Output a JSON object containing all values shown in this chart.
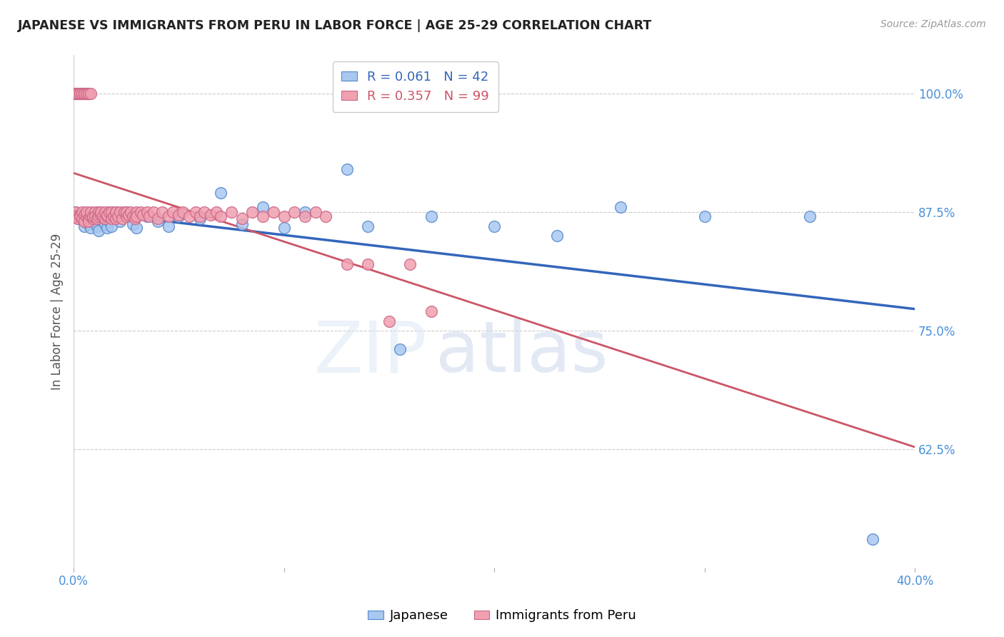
{
  "title": "JAPANESE VS IMMIGRANTS FROM PERU IN LABOR FORCE | AGE 25-29 CORRELATION CHART",
  "source": "Source: ZipAtlas.com",
  "ylabel": "In Labor Force | Age 25-29",
  "yticks": [
    0.625,
    0.75,
    0.875,
    1.0
  ],
  "ytick_labels": [
    "62.5%",
    "75.0%",
    "87.5%",
    "100.0%"
  ],
  "xlim": [
    0.0,
    0.4
  ],
  "ylim": [
    0.5,
    1.04
  ],
  "blue_fill": "#a8c8f0",
  "blue_edge": "#5588cc",
  "pink_fill": "#f0a0b0",
  "pink_edge": "#cc6688",
  "blue_line_color": "#3366bb",
  "pink_line_color": "#cc5566",
  "R_blue": 0.061,
  "N_blue": 42,
  "R_pink": 0.357,
  "N_pink": 99,
  "legend_label_blue": "Japanese",
  "legend_label_pink": "Immigrants from Peru",
  "axis_color": "#4a90d9",
  "blue_x": [
    0.001,
    0.002,
    0.003,
    0.004,
    0.005,
    0.006,
    0.007,
    0.008,
    0.009,
    0.01,
    0.011,
    0.012,
    0.013,
    0.015,
    0.016,
    0.017,
    0.018,
    0.02,
    0.022,
    0.025,
    0.028,
    0.03,
    0.035,
    0.04,
    0.045,
    0.05,
    0.06,
    0.07,
    0.08,
    0.09,
    0.1,
    0.11,
    0.13,
    0.14,
    0.155,
    0.17,
    0.2,
    0.23,
    0.26,
    0.3,
    0.35,
    0.38
  ],
  "blue_y": [
    0.875,
    0.868,
    0.872,
    0.87,
    0.86,
    0.865,
    0.862,
    0.858,
    0.87,
    0.865,
    0.86,
    0.855,
    0.868,
    0.862,
    0.858,
    0.865,
    0.86,
    0.87,
    0.865,
    0.875,
    0.862,
    0.858,
    0.87,
    0.865,
    0.86,
    0.87,
    0.868,
    0.895,
    0.862,
    0.88,
    0.858,
    0.875,
    0.92,
    0.86,
    0.73,
    0.87,
    0.86,
    0.85,
    0.88,
    0.87,
    0.87,
    0.53
  ],
  "pink_x": [
    0.001,
    0.001,
    0.002,
    0.003,
    0.003,
    0.004,
    0.004,
    0.005,
    0.005,
    0.006,
    0.006,
    0.007,
    0.007,
    0.008,
    0.008,
    0.009,
    0.009,
    0.01,
    0.01,
    0.011,
    0.012,
    0.012,
    0.013,
    0.013,
    0.014,
    0.015,
    0.015,
    0.016,
    0.016,
    0.017,
    0.018,
    0.018,
    0.019,
    0.02,
    0.02,
    0.02,
    0.021,
    0.022,
    0.023,
    0.024,
    0.025,
    0.025,
    0.026,
    0.027,
    0.028,
    0.029,
    0.03,
    0.03,
    0.032,
    0.033,
    0.035,
    0.036,
    0.038,
    0.04,
    0.042,
    0.045,
    0.047,
    0.05,
    0.052,
    0.055,
    0.058,
    0.06,
    0.062,
    0.065,
    0.068,
    0.07,
    0.075,
    0.08,
    0.085,
    0.09,
    0.095,
    0.1,
    0.105,
    0.11,
    0.115,
    0.12,
    0.13,
    0.14,
    0.15,
    0.16,
    0.17,
    0.0,
    0.0,
    0.0,
    0.001,
    0.001,
    0.002,
    0.002,
    0.003,
    0.003,
    0.004,
    0.004,
    0.005,
    0.005,
    0.006,
    0.006,
    0.007,
    0.007,
    0.008
  ],
  "pink_y": [
    0.875,
    0.87,
    0.868,
    0.872,
    0.87,
    0.875,
    0.868,
    0.872,
    0.865,
    0.87,
    0.875,
    0.868,
    0.865,
    0.87,
    0.875,
    0.868,
    0.87,
    0.875,
    0.87,
    0.868,
    0.875,
    0.87,
    0.872,
    0.875,
    0.87,
    0.868,
    0.875,
    0.87,
    0.872,
    0.875,
    0.868,
    0.875,
    0.87,
    0.875,
    0.868,
    0.875,
    0.87,
    0.875,
    0.868,
    0.875,
    0.87,
    0.875,
    0.872,
    0.875,
    0.87,
    0.868,
    0.875,
    0.87,
    0.875,
    0.872,
    0.875,
    0.87,
    0.875,
    0.868,
    0.875,
    0.87,
    0.875,
    0.872,
    0.875,
    0.87,
    0.875,
    0.87,
    0.875,
    0.872,
    0.875,
    0.87,
    0.875,
    0.868,
    0.875,
    0.87,
    0.875,
    0.87,
    0.875,
    0.87,
    0.875,
    0.87,
    0.82,
    0.82,
    0.76,
    0.82,
    0.77,
    1.0,
    1.0,
    1.0,
    1.0,
    1.0,
    1.0,
    1.0,
    1.0,
    1.0,
    1.0,
    1.0,
    1.0,
    1.0,
    1.0,
    1.0,
    1.0,
    1.0,
    1.0
  ]
}
